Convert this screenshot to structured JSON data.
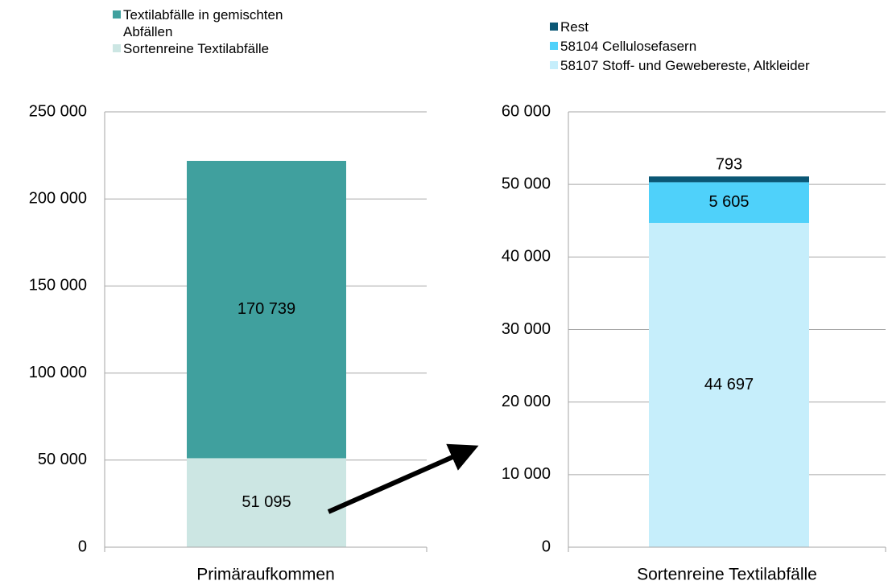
{
  "chart_data": [
    {
      "type": "bar",
      "stacked": true,
      "legend": "top",
      "categories": [
        "Primäraufkommen"
      ],
      "series": [
        {
          "name": "Sortenreine Textilabfälle",
          "color": "#cce6e3",
          "values": [
            51095
          ],
          "value_labels": [
            "51 095"
          ]
        },
        {
          "name": "Textilabfälle in gemischten Abfällen",
          "color": "#40a09e",
          "values": [
            170739
          ],
          "value_labels": [
            "170 739"
          ]
        }
      ],
      "ylim": [
        0,
        250000
      ],
      "yticks": [
        0,
        {
          "value": 50000,
          "label": "50 000"
        },
        {
          "value": 100000,
          "label": "100 000"
        },
        {
          "value": 150000,
          "label": "150 000"
        },
        {
          "value": 200000,
          "label": "200 000"
        },
        {
          "value": 250000,
          "label": "250 000"
        }
      ],
      "grid": true
    },
    {
      "type": "bar",
      "stacked": true,
      "legend": "top",
      "categories": [
        "Sortenreine Textilabfälle"
      ],
      "series": [
        {
          "name": "58107 Stoff- und Gewebereste, Altkleider",
          "color": "#c6eefb",
          "values": [
            44697
          ],
          "value_labels": [
            "44 697"
          ]
        },
        {
          "name": "58104 Cellulosefasern",
          "color": "#4fd1fa",
          "values": [
            5605
          ],
          "value_labels": [
            "5 605"
          ]
        },
        {
          "name": "Rest",
          "color": "#0b5775",
          "values": [
            793
          ]
        }
      ],
      "ylim": [
        0,
        60000
      ],
      "yticks": [
        0,
        {
          "value": 10000,
          "label": "10 000"
        },
        {
          "value": 20000,
          "label": "20 000"
        },
        {
          "value": 30000,
          "label": "30 000"
        },
        {
          "value": 40000,
          "label": "40 000"
        },
        {
          "value": 50000,
          "label": "50 000"
        },
        {
          "value": 60000,
          "label": "60 000"
        }
      ],
      "grid": true
    }
  ]
}
